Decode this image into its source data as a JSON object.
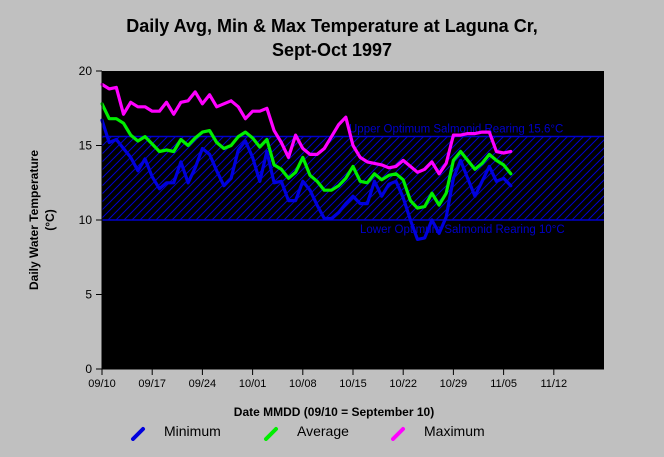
{
  "chart_data": {
    "type": "line",
    "title": [
      "Daily Avg, Min & Max Temperature at Laguna Cr,",
      "Sept-Oct 1997"
    ],
    "xlabel": "Date MMDD (09/10 = September 10)",
    "ylabel": [
      "Daily Water Temperature",
      "(°C)"
    ],
    "x_tick_labels": [
      "09/10",
      "09/17",
      "09/24",
      "10/01",
      "10/08",
      "10/15",
      "10/22",
      "10/29",
      "11/05",
      "11/12"
    ],
    "xlim": [
      "1997-09-10",
      "1997-11-19"
    ],
    "ylim": [
      0,
      20
    ],
    "y_ticks": [
      0,
      5,
      10,
      15,
      20
    ],
    "start_date": "1997-09-10",
    "band": {
      "low": 10,
      "high": 15.6,
      "upper_label": "Upper Optimum Salmonid Rearing 15.6°C",
      "lower_label": "Lower Optimum Salmonid Rearing 10°C",
      "color": "#0000cc"
    },
    "series": [
      {
        "name": "Minimum",
        "color": "#0000dd",
        "values": [
          16.7,
          15.2,
          15.4,
          14.8,
          14.2,
          13.3,
          14.1,
          12.9,
          12.1,
          12.5,
          12.5,
          13.9,
          12.5,
          13.5,
          14.8,
          14.4,
          13.3,
          12.3,
          12.8,
          14.7,
          15.3,
          14.2,
          12.6,
          14.6,
          12.5,
          12.6,
          11.3,
          11.3,
          12.6,
          12.0,
          11.0,
          10.1,
          10.1,
          10.5,
          11.1,
          11.6,
          11.1,
          11.1,
          12.6,
          11.6,
          12.4,
          12.6,
          11.5,
          10.0,
          8.7,
          8.8,
          10.0,
          9.1,
          10.2,
          12.8,
          14.0,
          12.8,
          11.6,
          12.6,
          13.6,
          12.6,
          12.8,
          12.3
        ]
      },
      {
        "name": "Average",
        "color": "#00ee00",
        "values": [
          17.8,
          16.8,
          16.8,
          16.5,
          15.7,
          15.3,
          15.6,
          15.1,
          14.6,
          14.7,
          14.6,
          15.4,
          15.0,
          15.5,
          15.9,
          16.0,
          15.2,
          14.8,
          15.0,
          15.6,
          15.9,
          15.5,
          14.9,
          15.4,
          13.7,
          13.4,
          12.8,
          13.2,
          14.2,
          13.0,
          12.6,
          12.0,
          12.0,
          12.3,
          12.8,
          13.6,
          12.6,
          12.5,
          13.1,
          12.7,
          13.0,
          13.1,
          12.7,
          11.3,
          10.8,
          10.9,
          11.8,
          11.0,
          11.8,
          14.0,
          14.6,
          14.0,
          13.4,
          13.8,
          14.4,
          14.0,
          13.7,
          13.1
        ]
      },
      {
        "name": "Maximum",
        "color": "#ff00ff",
        "values": [
          19.1,
          18.8,
          18.9,
          17.1,
          17.9,
          17.6,
          17.6,
          17.3,
          17.3,
          17.9,
          17.1,
          17.9,
          18.0,
          18.6,
          17.8,
          18.4,
          17.6,
          17.8,
          18.0,
          17.6,
          16.8,
          17.3,
          17.3,
          17.5,
          16.0,
          15.2,
          14.2,
          15.7,
          14.8,
          14.4,
          14.4,
          14.8,
          15.6,
          16.4,
          16.9,
          15.0,
          14.2,
          13.9,
          13.8,
          13.7,
          13.5,
          13.6,
          14.0,
          13.6,
          13.2,
          13.4,
          13.9,
          13.1,
          13.8,
          15.7,
          15.7,
          15.8,
          15.8,
          15.9,
          15.9,
          14.6,
          14.5,
          14.6
        ]
      }
    ],
    "legend_position": "bottom"
  }
}
